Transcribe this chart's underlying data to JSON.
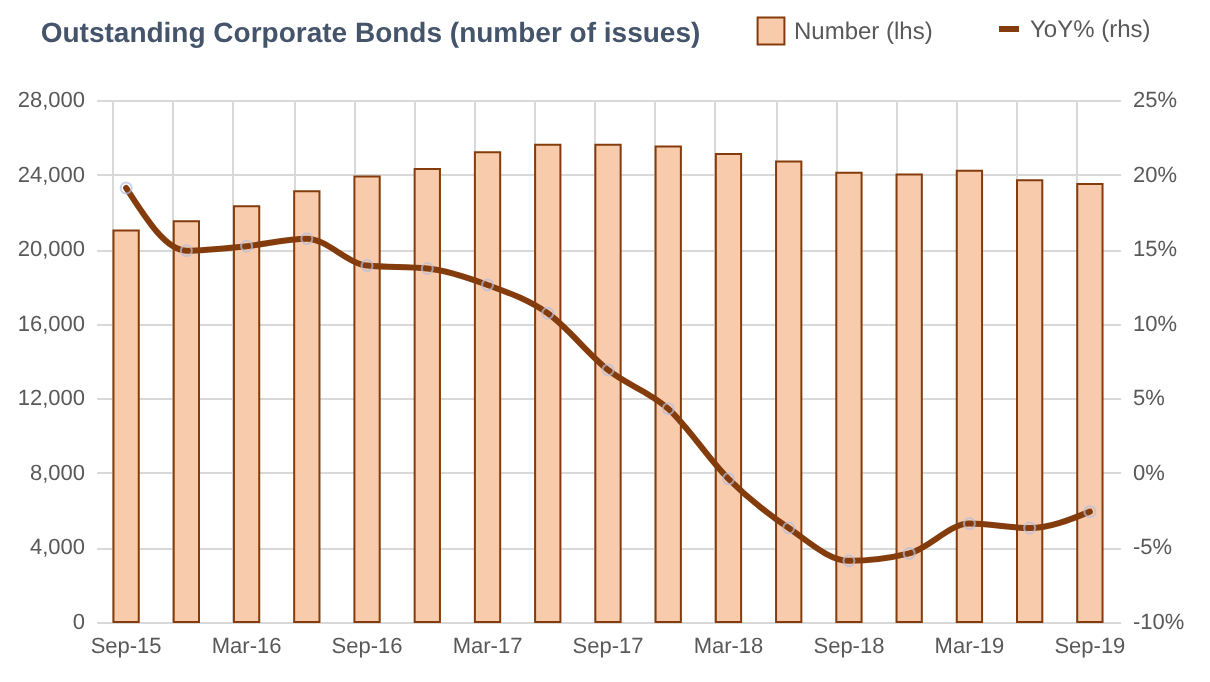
{
  "chart_data": {
    "type": "bar",
    "title": "Outstanding Corporate Bonds (number of issues)",
    "categories": [
      "Sep-15",
      null,
      "Mar-16",
      null,
      "Sep-16",
      null,
      "Mar-17",
      null,
      "Sep-17",
      null,
      "Mar-18",
      null,
      "Sep-18",
      null,
      "Mar-19",
      null,
      "Sep-19"
    ],
    "series": [
      {
        "name": "Number (lhs)",
        "color": "#f8cbad",
        "values": [
          21000,
          21500,
          22300,
          23100,
          23900,
          24300,
          25200,
          25600,
          25600,
          25500,
          25100,
          24700,
          24100,
          24000,
          24200,
          23700,
          23500
        ]
      },
      {
        "name": "YoY% (rhs)",
        "type": "line",
        "axis": "y2",
        "color": "#843c0c",
        "values": [
          19.1,
          14.9,
          15.2,
          15.7,
          13.9,
          13.7,
          12.6,
          10.7,
          6.9,
          4.3,
          -0.4,
          -3.7,
          -5.9,
          -5.4,
          -3.4,
          -3.7,
          -2.6
        ]
      }
    ],
    "ylim": [
      0,
      28000
    ],
    "yticks": [
      {
        "value": 0,
        "label": "0"
      },
      {
        "value": 4000,
        "label": "4,000"
      },
      {
        "value": 8000,
        "label": "8,000"
      },
      {
        "value": 12000,
        "label": "12,000"
      },
      {
        "value": 16000,
        "label": "16,000"
      },
      {
        "value": 20000,
        "label": "20,000"
      },
      {
        "value": 24000,
        "label": "24,000"
      },
      {
        "value": 28000,
        "label": "28,000"
      }
    ],
    "y2lim": [
      -10,
      25
    ],
    "y2ticks": [
      {
        "value": -10,
        "label": "-10%"
      },
      {
        "value": -5,
        "label": "-5%"
      },
      {
        "value": 0,
        "label": "0%"
      },
      {
        "value": 5,
        "label": "5%"
      },
      {
        "value": 10,
        "label": "10%"
      },
      {
        "value": 15,
        "label": "15%"
      },
      {
        "value": 20,
        "label": "20%"
      },
      {
        "value": 25,
        "label": "25%"
      }
    ],
    "grid": true,
    "legend": "top right",
    "marker": "circle",
    "line_style": "solid"
  }
}
